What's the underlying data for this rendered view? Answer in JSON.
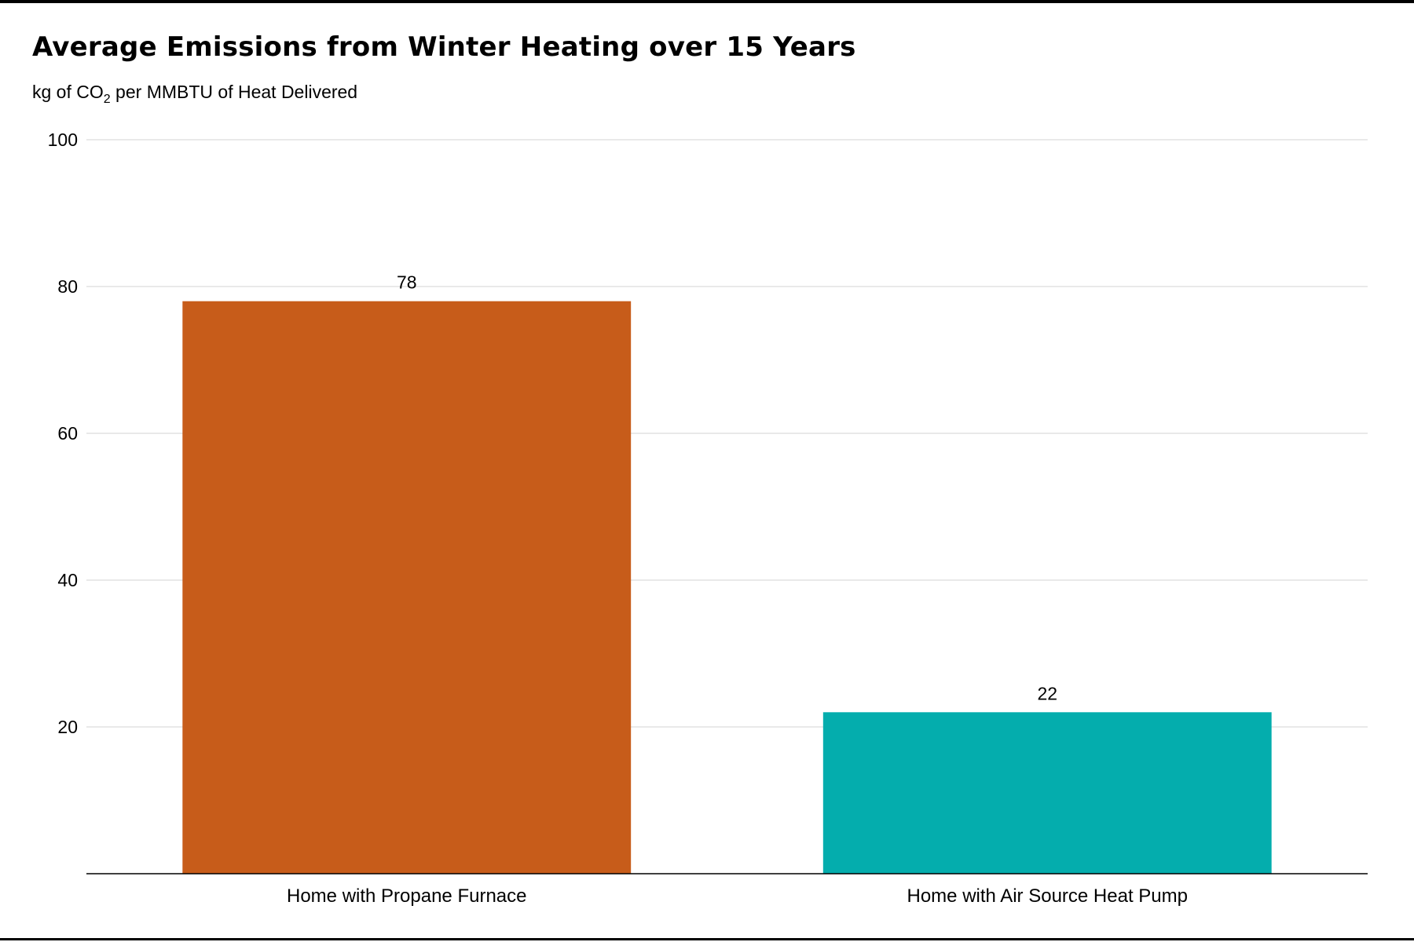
{
  "chart_data": {
    "type": "bar",
    "title": "Average Emissions from Winter Heating over 15 Years",
    "subtitle": {
      "prefix": "kg of CO",
      "subscript": "2",
      "suffix": " per MMBTU of Heat Delivered"
    },
    "categories": [
      "Home with Propane Furnace",
      "Home with Air Source Heat Pump"
    ],
    "values": [
      78,
      22
    ],
    "data_labels": [
      "78",
      "22"
    ],
    "colors": [
      "#c75c1a",
      "#04adad"
    ],
    "ylim": [
      0,
      100
    ],
    "yticks": [
      20,
      40,
      60,
      80,
      100
    ],
    "ytick_labels": [
      "20",
      "40",
      "60",
      "80",
      "100"
    ],
    "grid": true,
    "legend": "none"
  }
}
